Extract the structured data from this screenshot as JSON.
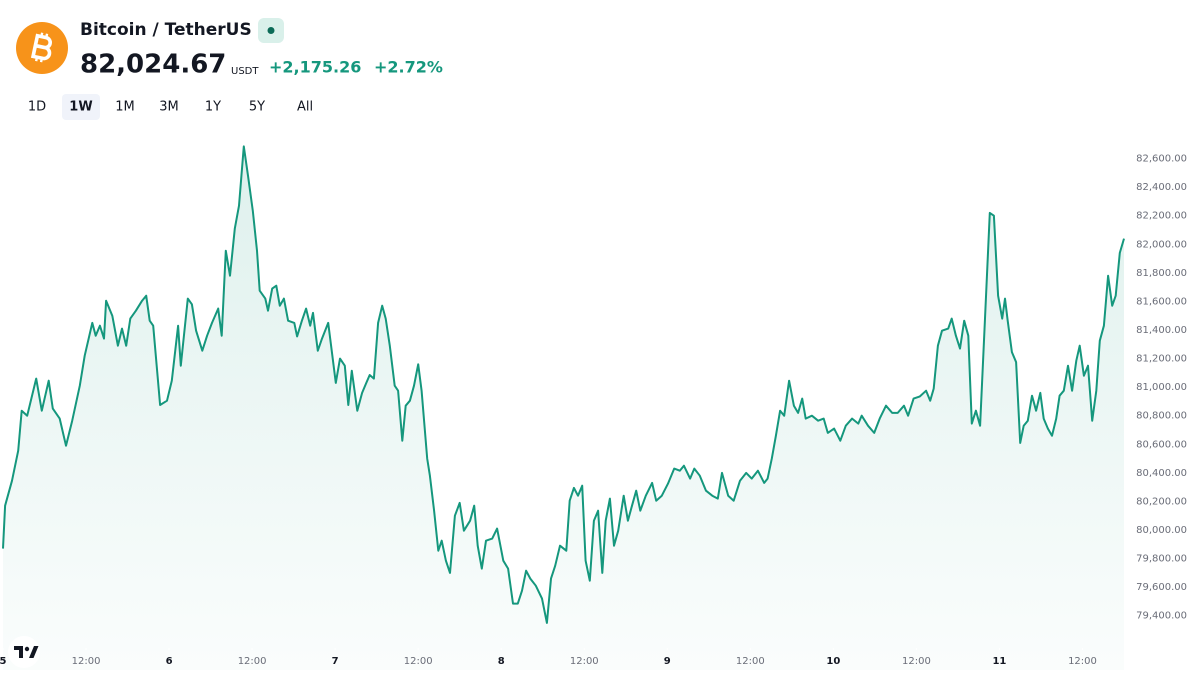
{
  "header": {
    "pair": "Bitcoin / TetherUS",
    "price": "82,024.67",
    "currency": "USDT",
    "change": "+2,175.26",
    "change_percent": "+2.72%",
    "ranges": [
      "1D",
      "1W",
      "1M",
      "3M",
      "1Y",
      "5Y",
      "All"
    ],
    "active_range": "1W"
  },
  "chart_data": {
    "type": "line",
    "color": "#15977d",
    "x": [
      0,
      0.3,
      1.3,
      2.2,
      2.7,
      3.5,
      4.8,
      5.6,
      6.6,
      7.2,
      8.2,
      9.1,
      10.0,
      11.1,
      11.8,
      12.9,
      13.4,
      14.0,
      14.6,
      14.9,
      15.8,
      16.6,
      17.2,
      17.8,
      18.4,
      19.2,
      20.1,
      20.7,
      21.2,
      21.7,
      22.7,
      23.7,
      24.4,
      25.3,
      25.7,
      26.7,
      27.3,
      27.9,
      28.8,
      29.5,
      30.2,
      31.1,
      31.6,
      32.2,
      32.8,
      33.5,
      34.1,
      34.8,
      35.4,
      36.1,
      36.7,
      37.1,
      37.9,
      38.3,
      38.9,
      39.5,
      40.0,
      40.6,
      41.2,
      42.1,
      42.5,
      43.2,
      43.8,
      44.4,
      44.8,
      45.5,
      46.1,
      47.0,
      48.1,
      48.7,
      49.4,
      49.9,
      50.4,
      51.2,
      51.9,
      52.5,
      53.0,
      53.6,
      54.2,
      54.8,
      55.3,
      55.9,
      56.6,
      57.1,
      57.7,
      58.2,
      58.8,
      59.4,
      60.0,
      60.5,
      61.3,
      61.7,
      62.3,
      62.9,
      63.4,
      64.0,
      64.6,
      65.3,
      66.0,
      66.6,
      67.5,
      68.1,
      68.6,
      69.2,
      69.8,
      70.7,
      71.4,
      72.3,
      73.0,
      73.7,
      74.4,
      75.0,
      75.6,
      76.2,
      77.0,
      77.9,
      78.6,
      79.2,
      79.8,
      80.5,
      81.4,
      81.9,
      82.5,
      83.1,
      83.7,
      84.2,
      84.8,
      85.4,
      86.0,
      86.6,
      87.1,
      87.7,
      88.3,
      88.9,
      89.7,
      90.3,
      90.9,
      91.5,
      92.1,
      92.9,
      93.8,
      94.4,
      95.2,
      96.1,
      97.0,
      97.8,
      98.4,
      99.3,
      99.9,
      100.7,
      101.6,
      102.5,
      103.3,
      103.9,
      104.8,
      105.6,
      106.5,
      107.4,
      108.2,
      109.1,
      110.0,
      110.5,
      111.1,
      111.7,
      112.3,
      112.9,
      113.6,
      114.3,
      114.9,
      115.5,
      116.0,
      116.9,
      117.8,
      118.6,
      119.2,
      120.1,
      121.0,
      121.8,
      122.7,
      123.6,
      124.1,
      125.0,
      125.9,
      126.7,
      127.6,
      128.5,
      129.3,
      130.2,
      130.8,
      131.6,
      132.5,
      133.4,
      134.0,
      134.5,
      135.1,
      135.7,
      136.6,
      137.1,
      137.7,
      138.3,
      138.9,
      139.5,
      140.0,
      140.6,
      141.2,
      141.9,
      142.6,
      143.2,
      143.8,
      144.4,
      144.8,
      145.2,
      145.8,
      146.4,
      147.0,
      147.5,
      148.1,
      148.7,
      149.3,
      149.9,
      150.4,
      151.0,
      151.6,
      152.2,
      152.7,
      153.3,
      153.9,
      154.5,
      155.1,
      155.6,
      156.2,
      156.8,
      157.4,
      158.0,
      158.5,
      159.1,
      159.7,
      160.3,
      160.8,
      161.4,
      162.0
    ],
    "values": [
      79870,
      80170,
      80345,
      80555,
      80835,
      80800,
      81060,
      80835,
      81045,
      80850,
      80780,
      80590,
      80765,
      81010,
      81220,
      81450,
      81360,
      81430,
      81340,
      81605,
      81500,
      81290,
      81410,
      81290,
      81480,
      81535,
      81605,
      81640,
      81465,
      81430,
      80875,
      80905,
      81045,
      81430,
      81150,
      81620,
      81580,
      81395,
      81255,
      81360,
      81450,
      81550,
      81360,
      81955,
      81780,
      82110,
      82270,
      82685,
      82480,
      82235,
      81955,
      81675,
      81620,
      81535,
      81690,
      81710,
      81570,
      81620,
      81465,
      81450,
      81355,
      81465,
      81550,
      81430,
      81520,
      81255,
      81340,
      81450,
      81030,
      81200,
      81150,
      80875,
      81115,
      80835,
      80960,
      81030,
      81085,
      81060,
      81450,
      81570,
      81480,
      81290,
      81010,
      80975,
      80625,
      80870,
      80905,
      81010,
      81160,
      80975,
      80500,
      80380,
      80135,
      79855,
      79925,
      79785,
      79700,
      80100,
      80190,
      79995,
      80065,
      80170,
      79890,
      79730,
      79925,
      79940,
      80010,
      79785,
      79730,
      79485,
      79485,
      79575,
      79715,
      79660,
      79610,
      79520,
      79350,
      79660,
      79750,
      79890,
      79855,
      80205,
      80295,
      80240,
      80310,
      79785,
      79645,
      80065,
      80135,
      79700,
      80065,
      80220,
      79890,
      79995,
      80240,
      80065,
      80170,
      80275,
      80135,
      80240,
      80330,
      80205,
      80240,
      80325,
      80430,
      80415,
      80450,
      80360,
      80430,
      80380,
      80275,
      80240,
      80220,
      80400,
      80240,
      80205,
      80345,
      80400,
      80360,
      80415,
      80330,
      80360,
      80500,
      80660,
      80835,
      80800,
      81045,
      80870,
      80820,
      80920,
      80780,
      80800,
      80765,
      80780,
      80680,
      80710,
      80625,
      80730,
      80780,
      80745,
      80800,
      80730,
      80680,
      80780,
      80870,
      80820,
      80820,
      80870,
      80800,
      80920,
      80935,
      80975,
      80905,
      80990,
      81290,
      81395,
      81410,
      81480,
      81360,
      81270,
      81465,
      81360,
      80745,
      80835,
      80730,
      81465,
      82220,
      82200,
      81640,
      81480,
      81620,
      81465,
      81245,
      81175,
      80610,
      80730,
      80765,
      80940,
      80835,
      80960,
      80780,
      80710,
      80660,
      80780,
      80940,
      80975,
      81150,
      80975,
      81185,
      81290,
      81080,
      81150,
      80765,
      80975,
      81325,
      81430,
      81780,
      81570,
      81640,
      81940,
      82040
    ],
    "xlim": [
      0,
      162
    ],
    "xticks": [
      {
        "value": 0,
        "label": "5"
      },
      {
        "value": 12,
        "label": "12:00"
      },
      {
        "value": 24,
        "label": "6"
      },
      {
        "value": 36,
        "label": "12:00"
      },
      {
        "value": 48,
        "label": "7"
      },
      {
        "value": 60,
        "label": "12:00"
      },
      {
        "value": 72,
        "label": "8"
      },
      {
        "value": 84,
        "label": "12:00"
      },
      {
        "value": 96,
        "label": "9"
      },
      {
        "value": 108,
        "label": "12:00"
      },
      {
        "value": 120,
        "label": "10"
      },
      {
        "value": 132,
        "label": "12:00"
      },
      {
        "value": 144,
        "label": "11"
      },
      {
        "value": 156,
        "label": "12:00"
      }
    ],
    "ylim": [
      79230,
      82730
    ],
    "yticks": [
      {
        "value": 79400,
        "label": "79,400.00"
      },
      {
        "value": 79600,
        "label": "79,600.00"
      },
      {
        "value": 79800,
        "label": "79,800.00"
      },
      {
        "value": 80000,
        "label": "80,000.00"
      },
      {
        "value": 80200,
        "label": "80,200.00"
      },
      {
        "value": 80400,
        "label": "80,400.00"
      },
      {
        "value": 80600,
        "label": "80,600.00"
      },
      {
        "value": 80800,
        "label": "80,800.00"
      },
      {
        "value": 81000,
        "label": "81,000.00"
      },
      {
        "value": 81200,
        "label": "81,200.00"
      },
      {
        "value": 81400,
        "label": "81,400.00"
      },
      {
        "value": 81600,
        "label": "81,600.00"
      },
      {
        "value": 81800,
        "label": "81,800.00"
      },
      {
        "value": 82000,
        "label": "82,000.00"
      },
      {
        "value": 82200,
        "label": "82,200.00"
      },
      {
        "value": 82400,
        "label": "82,400.00"
      },
      {
        "value": 82600,
        "label": "82,600.00"
      }
    ]
  }
}
